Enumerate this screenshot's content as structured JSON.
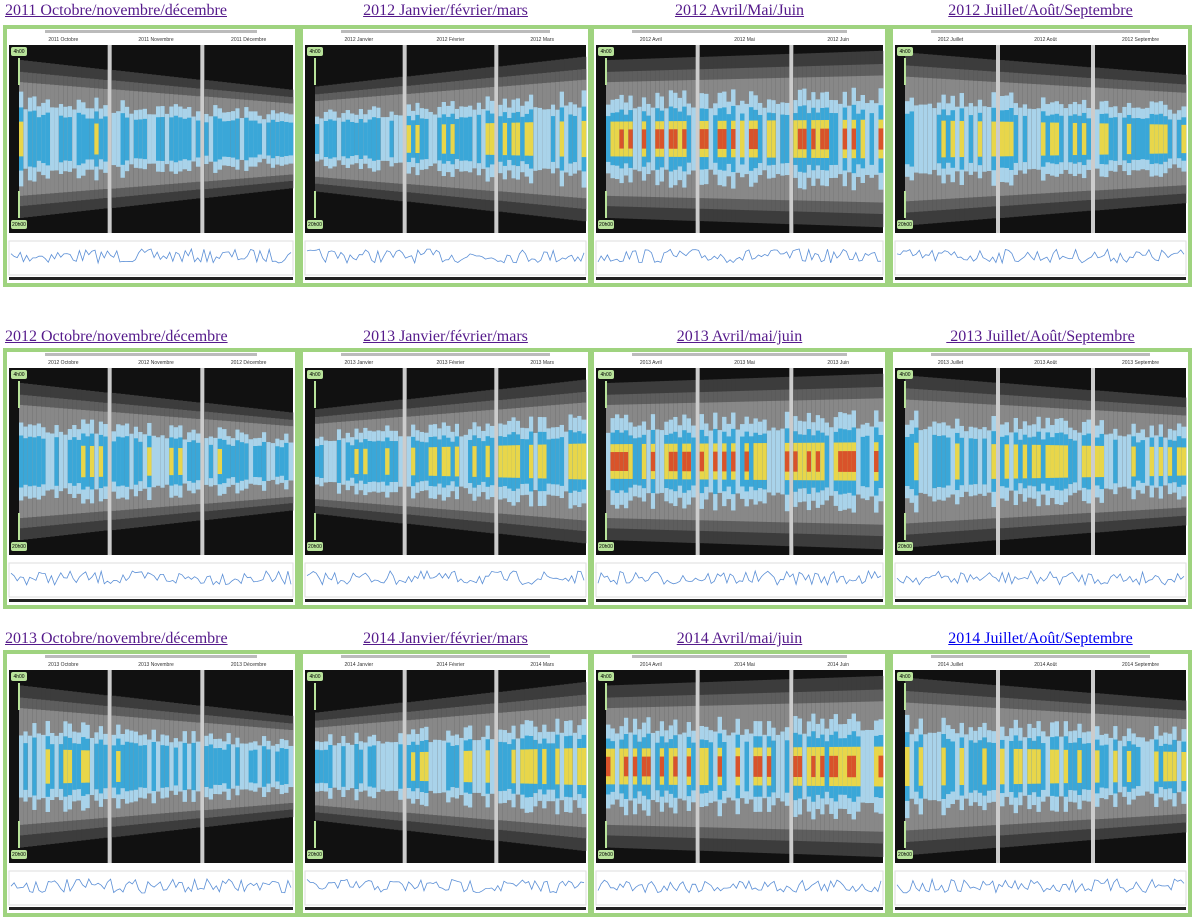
{
  "rows": [
    {
      "panels": [
        {
          "title": "2011 Octobre/novembre/décembre",
          "months": [
            "2011 Octobre",
            "2011 Novembre",
            "2011 Décembre"
          ],
          "start": "4h00",
          "end": "20h00"
        },
        {
          "title": "2012 Janvier/février/mars",
          "months": [
            "2012 Janvier",
            "2012 Février",
            "2012 Mars"
          ],
          "start": "4h00",
          "end": "20h00"
        },
        {
          "title": "2012 Avril/Mai/Juin",
          "months": [
            "2012 Avril",
            "2012 Mai",
            "2012 Juin"
          ],
          "start": "4h00",
          "end": "20h00"
        },
        {
          "title": "2012 Juillet/Août/Septembre",
          "months": [
            "2012 Juillet",
            "2012 Août",
            "2012 Septembre"
          ],
          "start": "4h00",
          "end": "20h00"
        }
      ]
    },
    {
      "panels": [
        {
          "title": "2012 Octobre/novembre/décembre",
          "months": [
            "2012 Octobre",
            "2012 Novembre",
            "2012 Décembre"
          ],
          "start": "4h00",
          "end": "20h00"
        },
        {
          "title": "2013 Janvier/février/mars",
          "months": [
            "2013 Janvier",
            "2013 Février",
            "2013 Mars"
          ],
          "start": "4h00",
          "end": "20h00"
        },
        {
          "title": "2013 Avril/mai/juin",
          "months": [
            "2013 Avril",
            "2013 Mai",
            "2013 Juin"
          ],
          "start": "4h00",
          "end": "20h00"
        },
        {
          "title": " 2013 Juillet/Août/Septembre",
          "months": [
            "2013 Juillet",
            "2013 Août",
            "2013 Septembre"
          ],
          "start": "4h00",
          "end": "20h00"
        }
      ]
    },
    {
      "panels": [
        {
          "title": "2013 Octobre/novembre/décembre",
          "months": [
            "2013 Octobre",
            "2013 Novembre",
            "2013 Décembre"
          ],
          "start": "4h00",
          "end": "20h00"
        },
        {
          "title": "2014 Janvier/février/mars",
          "months": [
            "2014 Janvier",
            "2014 Février",
            "2014 Mars"
          ],
          "start": "4h00",
          "end": "20h00"
        },
        {
          "title": "2014 Avril/mai/juin",
          "months": [
            "2014 Avril",
            "2014 Mai",
            "2014 Juin"
          ],
          "start": "4h00",
          "end": "20h00"
        },
        {
          "title": "2014 Juillet/Août/Septembre",
          "months": [
            "2014 Juillet",
            "2014 Août",
            "2014 Septembre"
          ],
          "start": "4h00",
          "end": "20h00"
        }
      ]
    }
  ]
}
